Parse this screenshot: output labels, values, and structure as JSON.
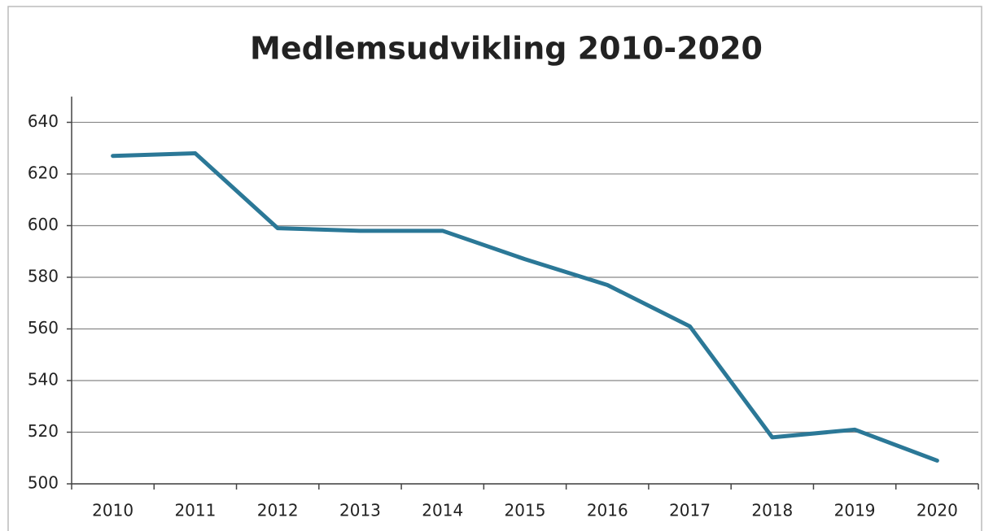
{
  "chart_data": {
    "type": "line",
    "title": "Medlemsudvikling 2010-2020",
    "categories": [
      "2010",
      "2011",
      "2012",
      "2013",
      "2014",
      "2015",
      "2016",
      "2017",
      "2018",
      "2019",
      "2020"
    ],
    "series": [
      {
        "color": "#2b7897",
        "values": [
          627,
          628,
          599,
          598,
          598,
          587,
          577,
          561,
          518,
          521,
          509
        ]
      }
    ],
    "ylim": [
      500,
      650
    ],
    "yticks": [
      500,
      520,
      540,
      560,
      580,
      600,
      620,
      640
    ],
    "grid": true
  }
}
